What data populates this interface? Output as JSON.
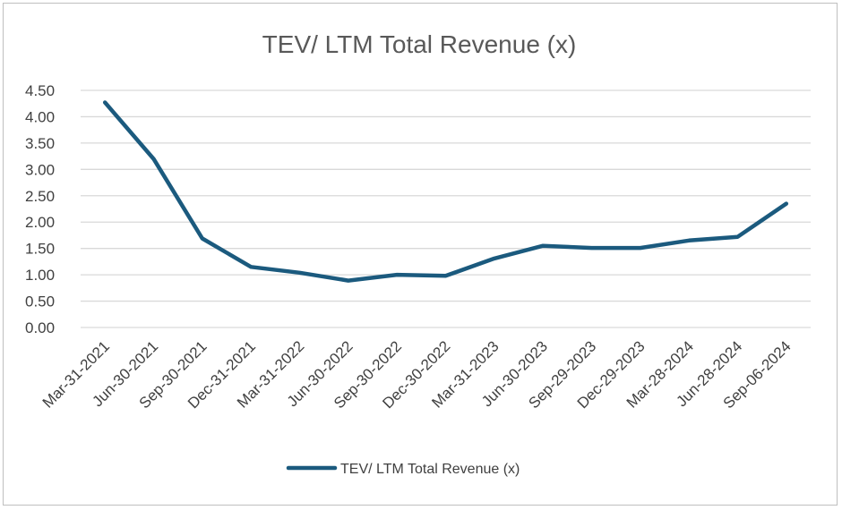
{
  "chart_data": {
    "type": "line",
    "title": "TEV/ LTM Total Revenue (x)",
    "xlabel": "",
    "ylabel": "",
    "ylim": [
      0,
      4.5
    ],
    "yticks": [
      "0.00",
      "0.50",
      "1.00",
      "1.50",
      "2.00",
      "2.50",
      "3.00",
      "3.50",
      "4.00",
      "4.50"
    ],
    "grid": true,
    "legend": "bottom",
    "categories": [
      "Mar-31-2021",
      "Jun-30-2021",
      "Sep-30-2021",
      "Dec-31-2021",
      "Mar-31-2022",
      "Jun-30-2022",
      "Sep-30-2022",
      "Dec-30-2022",
      "Mar-31-2023",
      "Jun-30-2023",
      "Sep-29-2023",
      "Dec-29-2023",
      "Mar-28-2024",
      "Jun-28-2024",
      "Sep-06-2024"
    ],
    "series": [
      {
        "name": "TEV/ LTM Total Revenue (x)",
        "color": "#1b5a7e",
        "values": [
          4.27,
          3.2,
          1.69,
          1.15,
          1.04,
          0.89,
          1.0,
          0.98,
          1.31,
          1.55,
          1.51,
          1.51,
          1.65,
          1.72,
          2.35
        ]
      }
    ]
  }
}
